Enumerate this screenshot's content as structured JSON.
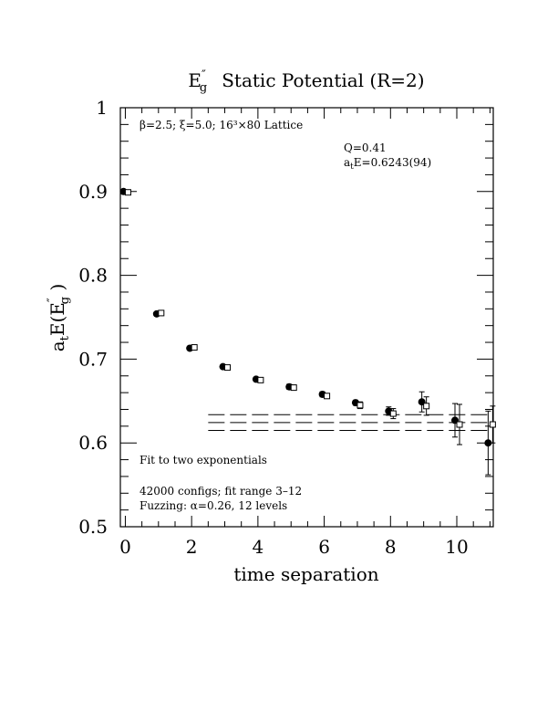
{
  "chart_data": {
    "type": "scatter",
    "title": {
      "main": "E",
      "super": "″",
      "sub": "g",
      "rest": "Static Potential (R=2)"
    },
    "xlabel": "time separation",
    "ylabel": {
      "prefix": "a",
      "prefix_sub": "t",
      "main": "E(E",
      "super": "″",
      "sub": "g",
      "close": " )"
    },
    "xlim": [
      -0.15,
      11.1
    ],
    "ylim": [
      0.5,
      1.0
    ],
    "x_ticks": [
      0,
      2,
      4,
      6,
      8,
      10
    ],
    "x_tick_labels": [
      "0",
      "2",
      "4",
      "6",
      "8",
      "10"
    ],
    "y_ticks": [
      0.5,
      0.6,
      0.7,
      0.8,
      0.9,
      1.0
    ],
    "y_tick_labels": [
      "0.5",
      "0.6",
      "0.7",
      "0.8",
      "0.9",
      "1"
    ],
    "annotations": {
      "lattice": "β=2.5; ξ=5.0; 16³×80 Lattice",
      "q": "Q=0.41",
      "fit_value": "aₜE=0.6243(94)",
      "fit_value_prefix": "a",
      "fit_value_sub": "t",
      "fit_value_rest": "E=0.6243(94)",
      "fit_method": "Fit to two exponentials",
      "configs": "42000 configs; fit range 3–12",
      "fuzzing": "Fuzzing: α=0.26, 12 levels"
    },
    "series": [
      {
        "marker": "filled-circle",
        "x": [
          0,
          1,
          2,
          3,
          4,
          5,
          6,
          7,
          8,
          9,
          10,
          11
        ],
        "y": [
          0.9,
          0.754,
          0.713,
          0.691,
          0.676,
          0.667,
          0.658,
          0.648,
          0.638,
          0.649,
          0.627,
          0.6
        ],
        "err": [
          0.0015,
          0.002,
          0.002,
          0.002,
          0.002,
          0.003,
          0.003,
          0.003,
          0.005,
          0.012,
          0.02,
          0.038
        ]
      },
      {
        "marker": "open-square",
        "x": [
          0,
          1,
          2,
          3,
          4,
          5,
          6,
          7,
          8,
          9,
          10,
          11
        ],
        "y": [
          0.899,
          0.755,
          0.714,
          0.69,
          0.675,
          0.666,
          0.656,
          0.645,
          0.635,
          0.644,
          0.622,
          0.622
        ],
        "err": [
          0.0015,
          0.002,
          0.002,
          0.002,
          0.002,
          0.003,
          0.003,
          0.004,
          0.006,
          0.011,
          0.024,
          0.022
        ]
      }
    ],
    "fit": {
      "value": 0.6243,
      "error": 0.0094,
      "x_range": [
        2.5,
        11.1
      ]
    },
    "grid": false
  }
}
